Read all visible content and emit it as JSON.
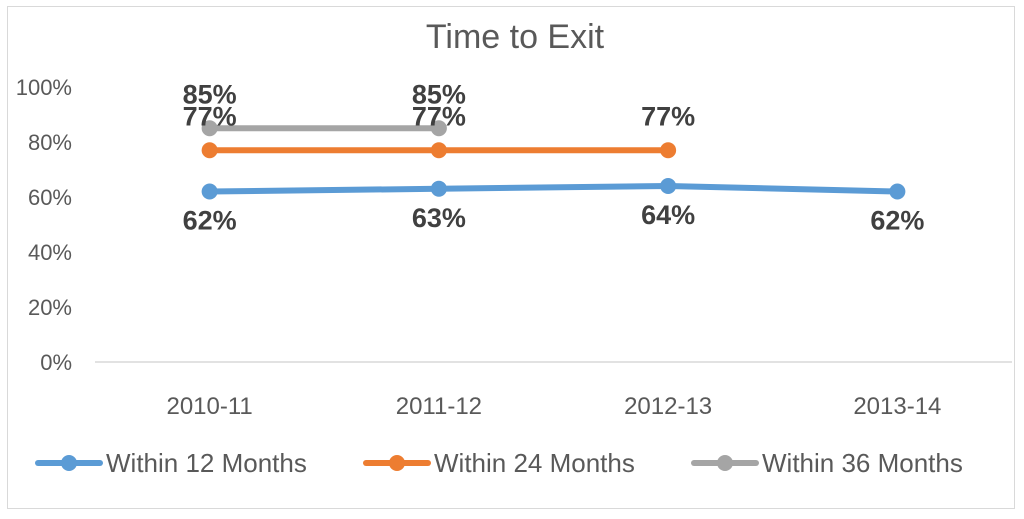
{
  "chart_data": {
    "type": "line",
    "title": "Time to Exit",
    "categories": [
      "2010-11",
      "2011-12",
      "2012-13",
      "2013-14"
    ],
    "y_ticks": [
      "0%",
      "20%",
      "40%",
      "60%",
      "80%",
      "100%"
    ],
    "ylim": [
      0,
      100
    ],
    "grid": false,
    "legend_position": "bottom",
    "series": [
      {
        "name": "Within 12 Months",
        "color": "#5b9bd5",
        "values": [
          62,
          63,
          64,
          62
        ],
        "labels": [
          "62%",
          "63%",
          "64%",
          "62%"
        ]
      },
      {
        "name": "Within 24 Months",
        "color": "#ed7d31",
        "values": [
          77,
          77,
          77,
          null
        ],
        "labels": [
          "77%",
          "77%",
          "77%",
          null
        ]
      },
      {
        "name": "Within 36 Months",
        "color": "#a5a5a5",
        "values": [
          85,
          85,
          null,
          null
        ],
        "labels": [
          "85%",
          "85%",
          null,
          null
        ]
      }
    ]
  }
}
